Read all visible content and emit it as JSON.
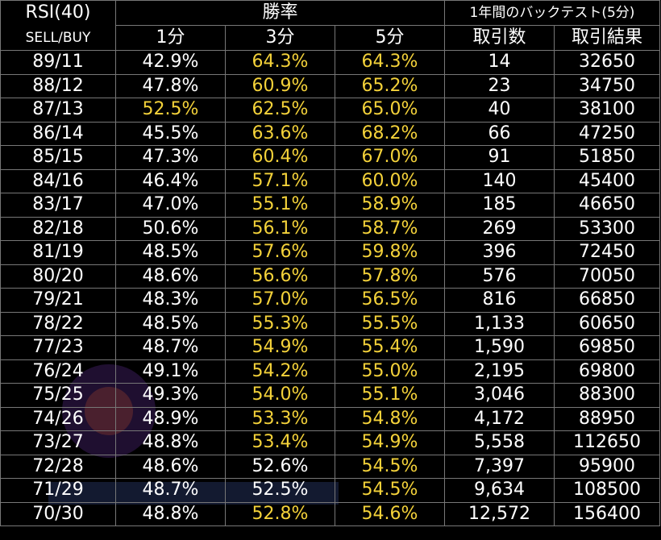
{
  "header": {
    "rsi_label": "RSI(40)",
    "sell_buy_label": "SELL/BUY",
    "win_rate_label": "勝率",
    "backtest_label": "1年間のバックテスト(5分)",
    "col_1min": "1分",
    "col_3min": "3分",
    "col_5min": "5分",
    "col_trades": "取引数",
    "col_result": "取引結果"
  },
  "highlight_color": "#f4d23a",
  "rows": [
    {
      "sb": "89/11",
      "m1": "42.9%",
      "m3": "64.3%",
      "m5": "64.3%",
      "trades": "14",
      "result": "32650",
      "hl": [
        false,
        true,
        true
      ]
    },
    {
      "sb": "88/12",
      "m1": "47.8%",
      "m3": "60.9%",
      "m5": "65.2%",
      "trades": "23",
      "result": "34750",
      "hl": [
        false,
        true,
        true
      ]
    },
    {
      "sb": "87/13",
      "m1": "52.5%",
      "m3": "62.5%",
      "m5": "65.0%",
      "trades": "40",
      "result": "38100",
      "hl": [
        true,
        true,
        true
      ]
    },
    {
      "sb": "86/14",
      "m1": "45.5%",
      "m3": "63.6%",
      "m5": "68.2%",
      "trades": "66",
      "result": "47250",
      "hl": [
        false,
        true,
        true
      ]
    },
    {
      "sb": "85/15",
      "m1": "47.3%",
      "m3": "60.4%",
      "m5": "67.0%",
      "trades": "91",
      "result": "51850",
      "hl": [
        false,
        true,
        true
      ]
    },
    {
      "sb": "84/16",
      "m1": "46.4%",
      "m3": "57.1%",
      "m5": "60.0%",
      "trades": "140",
      "result": "45400",
      "hl": [
        false,
        true,
        true
      ]
    },
    {
      "sb": "83/17",
      "m1": "47.0%",
      "m3": "55.1%",
      "m5": "58.9%",
      "trades": "185",
      "result": "46650",
      "hl": [
        false,
        true,
        true
      ]
    },
    {
      "sb": "82/18",
      "m1": "50.6%",
      "m3": "56.1%",
      "m5": "58.7%",
      "trades": "269",
      "result": "53300",
      "hl": [
        false,
        true,
        true
      ]
    },
    {
      "sb": "81/19",
      "m1": "48.5%",
      "m3": "57.6%",
      "m5": "59.8%",
      "trades": "396",
      "result": "72450",
      "hl": [
        false,
        true,
        true
      ]
    },
    {
      "sb": "80/20",
      "m1": "48.6%",
      "m3": "56.6%",
      "m5": "57.8%",
      "trades": "576",
      "result": "70050",
      "hl": [
        false,
        true,
        true
      ]
    },
    {
      "sb": "79/21",
      "m1": "48.3%",
      "m3": "57.0%",
      "m5": "56.5%",
      "trades": "816",
      "result": "66850",
      "hl": [
        false,
        true,
        true
      ]
    },
    {
      "sb": "78/22",
      "m1": "48.5%",
      "m3": "55.3%",
      "m5": "55.5%",
      "trades": "1,133",
      "result": "60650",
      "hl": [
        false,
        true,
        true
      ]
    },
    {
      "sb": "77/23",
      "m1": "48.7%",
      "m3": "54.9%",
      "m5": "55.4%",
      "trades": "1,590",
      "result": "69850",
      "hl": [
        false,
        true,
        true
      ]
    },
    {
      "sb": "76/24",
      "m1": "49.1%",
      "m3": "54.2%",
      "m5": "55.0%",
      "trades": "2,195",
      "result": "69800",
      "hl": [
        false,
        true,
        true
      ]
    },
    {
      "sb": "75/25",
      "m1": "49.3%",
      "m3": "54.0%",
      "m5": "55.1%",
      "trades": "3,046",
      "result": "88300",
      "hl": [
        false,
        true,
        true
      ]
    },
    {
      "sb": "74/26",
      "m1": "48.9%",
      "m3": "53.3%",
      "m5": "54.8%",
      "trades": "4,172",
      "result": "88950",
      "hl": [
        false,
        true,
        true
      ]
    },
    {
      "sb": "73/27",
      "m1": "48.8%",
      "m3": "53.4%",
      "m5": "54.9%",
      "trades": "5,558",
      "result": "112650",
      "hl": [
        false,
        true,
        true
      ]
    },
    {
      "sb": "72/28",
      "m1": "48.6%",
      "m3": "52.6%",
      "m5": "54.5%",
      "trades": "7,397",
      "result": "95900",
      "hl": [
        false,
        false,
        true
      ]
    },
    {
      "sb": "71/29",
      "m1": "48.7%",
      "m3": "52.5%",
      "m5": "54.5%",
      "trades": "9,634",
      "result": "108500",
      "hl": [
        false,
        false,
        true
      ]
    },
    {
      "sb": "70/30",
      "m1": "48.8%",
      "m3": "52.8%",
      "m5": "54.6%",
      "trades": "12,572",
      "result": "156400",
      "hl": [
        false,
        true,
        true
      ]
    }
  ]
}
